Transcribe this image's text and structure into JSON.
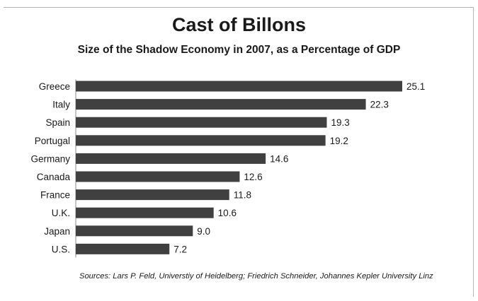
{
  "chart_data": {
    "type": "bar",
    "orientation": "horizontal",
    "title": "Cast of Billons",
    "subtitle": "Size of the Shadow Economy in 2007, as a Percentage of GDP",
    "categories": [
      "Greece",
      "Italy",
      "Spain",
      "Portugal",
      "Germany",
      "Canada",
      "France",
      "U.K.",
      "Japan",
      "U.S."
    ],
    "values": [
      25.1,
      22.3,
      19.3,
      19.2,
      14.6,
      12.6,
      11.8,
      10.6,
      9.0,
      7.2
    ],
    "value_labels": [
      "25.1",
      "22.3",
      "19.3",
      "19.2",
      "14.6",
      "12.6",
      "11.8",
      "10.6",
      "9.0",
      "7.2"
    ],
    "xlim": [
      0,
      25.1
    ],
    "grid": false,
    "bar_color": "#404040",
    "source": "Sources: Lars P. Feld, Universtiy of Heidelberg; Friedrich Schneider, Johannes Kepler University Linz"
  }
}
